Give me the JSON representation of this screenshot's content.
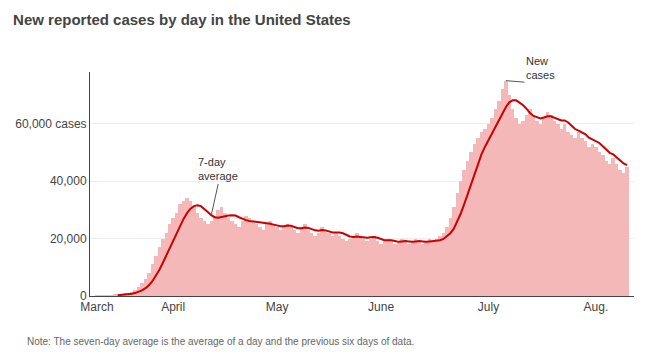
{
  "chart_data": {
    "type": "bar",
    "title": "New reported cases by day in the United States",
    "note": "Note: The seven-day average is the average of a day and the previous six days of data.",
    "categories": [
      "March",
      null,
      null,
      null,
      null,
      null,
      null,
      null,
      null,
      null,
      null,
      null,
      null,
      null,
      null,
      null,
      null,
      null,
      null,
      null,
      null,
      null,
      "April",
      null,
      null,
      null,
      null,
      null,
      null,
      null,
      null,
      null,
      null,
      null,
      null,
      null,
      null,
      null,
      null,
      null,
      null,
      null,
      null,
      null,
      null,
      null,
      null,
      null,
      null,
      null,
      null,
      null,
      "May",
      null,
      null,
      null,
      null,
      null,
      null,
      null,
      null,
      null,
      null,
      null,
      null,
      null,
      null,
      null,
      null,
      null,
      null,
      null,
      null,
      null,
      null,
      null,
      null,
      null,
      null,
      null,
      null,
      null,
      "June",
      null,
      null,
      null,
      null,
      null,
      null,
      null,
      null,
      null,
      null,
      null,
      null,
      null,
      null,
      null,
      null,
      null,
      null,
      null,
      null,
      null,
      null,
      null,
      null,
      null,
      null,
      null,
      null,
      null,
      null,
      "July",
      null,
      null,
      null,
      null,
      null,
      null,
      null,
      null,
      null,
      null,
      null,
      null,
      null,
      null,
      null,
      null,
      null,
      null,
      null,
      null,
      null,
      null,
      null,
      null,
      null,
      null,
      null,
      null,
      null,
      null,
      "Aug.",
      null,
      null,
      null,
      null,
      null,
      null,
      null,
      null,
      null
    ],
    "series": [
      {
        "type": "bar",
        "color": "#f5b8b8",
        "values": [
          50,
          100,
          150,
          200,
          300,
          400,
          500,
          700,
          900,
          1100,
          1500,
          2000,
          3000,
          4500,
          6000,
          8000,
          11000,
          14000,
          17000,
          20000,
          22000,
          25000,
          27000,
          29000,
          32000,
          33000,
          34000,
          33000,
          31000,
          29000,
          27000,
          26000,
          25000,
          26000,
          28000,
          30000,
          31000,
          29000,
          27000,
          26000,
          25000,
          24000,
          26000,
          28000,
          27000,
          26000,
          25000,
          24000,
          23000,
          25000,
          26000,
          25000,
          24000,
          23000,
          24000,
          25000,
          24000,
          23000,
          22000,
          24000,
          25000,
          23000,
          22000,
          21000,
          22000,
          24000,
          23000,
          22000,
          21000,
          22000,
          21000,
          20000,
          19000,
          20000,
          21000,
          22000,
          21000,
          20000,
          19000,
          20000,
          21000,
          19000,
          18000,
          19000,
          20000,
          19000,
          18000,
          19000,
          20000,
          19000,
          18000,
          19000,
          20000,
          19000,
          18000,
          19000,
          20000,
          19000,
          20000,
          21000,
          22000,
          24000,
          27000,
          31000,
          36000,
          40000,
          44000,
          47000,
          50000,
          53000,
          55000,
          57000,
          58000,
          60000,
          62000,
          65000,
          68000,
          72000,
          75000,
          70000,
          65000,
          62000,
          60000,
          61000,
          63000,
          65000,
          63000,
          61000,
          60000,
          62000,
          64000,
          63000,
          61000,
          60000,
          58000,
          60000,
          57000,
          56000,
          55000,
          57000,
          55000,
          54000,
          52000,
          53000,
          52000,
          50000,
          49000,
          47000,
          46000,
          48000,
          46000,
          44000,
          43000,
          45000
        ]
      },
      {
        "type": "line",
        "color": "#cc0000",
        "values": [
          null,
          null,
          null,
          null,
          null,
          null,
          242.8571,
          335.7143,
          450,
          585.7143,
          771.4286,
          1014.2857,
          1385.7143,
          1957.1429,
          2714.2857,
          3728.5714,
          5142.8571,
          6928.5714,
          9071.4286,
          11500,
          14000,
          16714.2857,
          19428.5714,
          22000,
          24571.4286,
          26857.1429,
          28857.1429,
          30428.5714,
          31285.7143,
          31571.4286,
          31285.7143,
          30428.5714,
          29285.7143,
          28142.8571,
          27428.5714,
          27285.7143,
          27571.4286,
          27857.1429,
          28000,
          28142.8571,
          28000,
          27428.5714,
          26857.1429,
          26428.5714,
          26142.8571,
          26000,
          25857.1429,
          25714.2857,
          25571.4286,
          25428.5714,
          25142.8571,
          24857.1429,
          24571.4286,
          24285.7143,
          24285.7143,
          24571.4286,
          24428.5714,
          24000,
          23571.4286,
          23571.4286,
          23857.1429,
          23714.2857,
          23285.7143,
          22857.1429,
          22714.2857,
          23000,
          22857.1429,
          22428.5714,
          22142.8571,
          22142.8571,
          22142.8571,
          21857.1429,
          21142.8571,
          20714.2857,
          20571.4286,
          20714.2857,
          20571.4286,
          20428.5714,
          20285.7143,
          20428.5714,
          20571.4286,
          20285.7143,
          19714.2857,
          19428.5714,
          19428.5714,
          19428.5714,
          19142.8571,
          18857.1429,
          19000,
          19142.8571,
          19000,
          18857.1429,
          19000,
          19142.8571,
          19000,
          18857.1429,
          19000,
          19142.8571,
          19285.7143,
          19428.5714,
          19857.1429,
          20714.2857,
          21857.1429,
          23428.5714,
          25857.1429,
          28714.2857,
          32000,
          35571.4286,
          39285.7143,
          43000,
          46428.5714,
          49428.5714,
          52000,
          54285.7143,
          56428.5714,
          58571.4286,
          60714.2857,
          63142.8571,
          65714.2857,
          67428.5714,
          68142.8571,
          68142.8571,
          67428.5714,
          66428.5714,
          65142.8571,
          63714.2857,
          62714.2857,
          62142.8571,
          61857.1429,
          62142.8571,
          62571.4286,
          62571.4286,
          62000,
          61571.4286,
          61142.8571,
          61142.8571,
          60428.5714,
          59285.7143,
          58142.8571,
          57571.4286,
          56857.1429,
          56285.7143,
          55142.8571,
          54571.4286,
          54000,
          53285.7143,
          52142.8571,
          51000,
          49857.1429,
          49285.7143,
          48285.7143,
          47142.8571,
          46142.8571,
          45571.4286
        ]
      }
    ],
    "ylim": [
      0,
      78000
    ],
    "yticks": [
      0,
      {
        "value": 20000,
        "label": "20,000"
      },
      {
        "value": 40000,
        "label": "40,000"
      },
      {
        "value": 60000,
        "label": "60,000 cases"
      }
    ],
    "grid": true,
    "annotations": [
      {
        "text": "7-day\naverage",
        "x": 33,
        "y": 28142.8571,
        "text_x": 35,
        "text_y": 39000
      },
      {
        "text": "New\ncases",
        "x": 118,
        "y": 75000,
        "text_x": 128,
        "text_y": 74000
      }
    ]
  }
}
